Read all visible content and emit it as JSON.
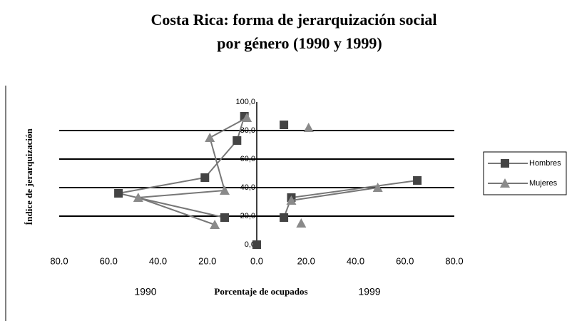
{
  "chart_data": {
    "type": "line",
    "title": [
      "Costa Rica: forma de jerarquización social",
      "por  género (1990 y 1999)"
    ],
    "xlabel": "Porcentaje de ocupados",
    "ylabel": "Índice de jerarquización",
    "annotations": [
      "1990",
      "1999"
    ],
    "xlim": [
      -80,
      80
    ],
    "xticks": [
      {
        "value": -80,
        "label": "80.0"
      },
      {
        "value": -60,
        "label": "60.0"
      },
      {
        "value": -40,
        "label": "40.0"
      },
      {
        "value": -20,
        "label": "20.0"
      },
      {
        "value": 0,
        "label": "0.0"
      },
      {
        "value": 20,
        "label": "20.0"
      },
      {
        "value": 40,
        "label": "40.0"
      },
      {
        "value": 60,
        "label": "60.0"
      },
      {
        "value": 80,
        "label": "80.0"
      }
    ],
    "ylim": [
      0,
      100
    ],
    "yticks": [
      {
        "value": 0,
        "label": "0,0"
      },
      {
        "value": 20,
        "label": "20,0"
      },
      {
        "value": 40,
        "label": "40,0"
      },
      {
        "value": 60,
        "label": "60,0"
      },
      {
        "value": 80,
        "label": "80,0"
      },
      {
        "value": 100,
        "label": "100,0"
      }
    ],
    "grid": true,
    "legend": "right",
    "series": [
      {
        "name": "Hombres",
        "color": "#444444",
        "marker": "square",
        "x": [
          -5,
          -8,
          -21,
          -56,
          -13,
          null,
          0,
          null,
          11,
          14,
          65,
          null,
          11
        ],
        "values": [
          90,
          73,
          47,
          36,
          19,
          null,
          0,
          null,
          19,
          33,
          45,
          null,
          84
        ]
      },
      {
        "name": "Mujeres",
        "color": "#8a8a8a",
        "marker": "triangle",
        "x": [
          -4,
          -19,
          -13,
          -48,
          -17,
          null,
          21,
          null,
          18,
          null,
          14,
          49
        ],
        "values": [
          89,
          75,
          38,
          33,
          14,
          null,
          82,
          null,
          15,
          null,
          31,
          40
        ]
      }
    ]
  }
}
